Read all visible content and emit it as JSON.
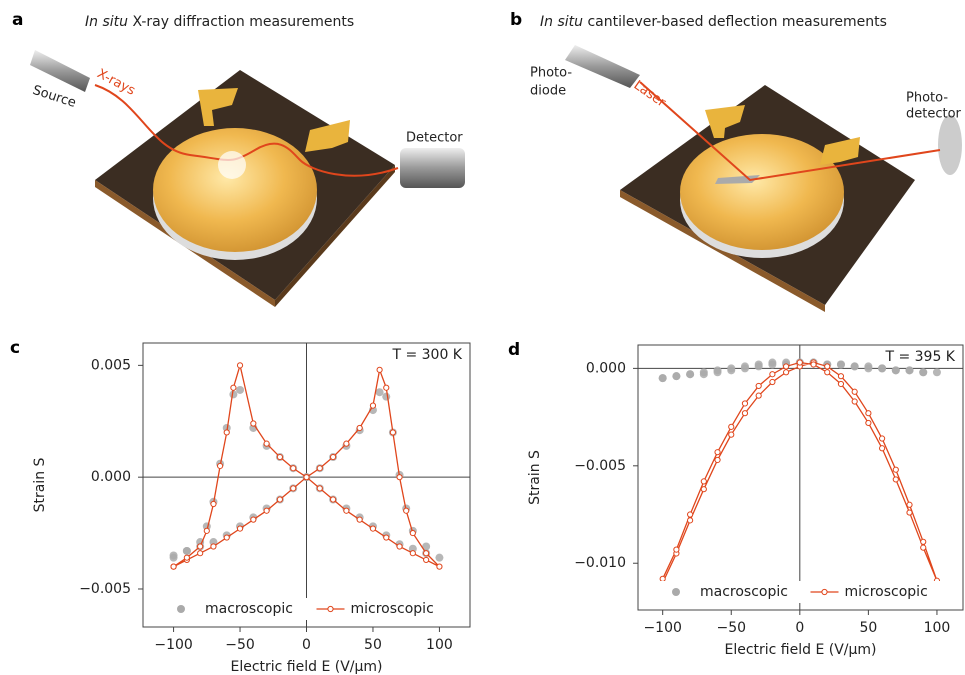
{
  "illustrations": [
    {
      "letter": "a",
      "title_em": "In situ",
      "title": " X-ray diffraction measurements",
      "labels": [
        "Source",
        "X-rays",
        "Detector"
      ]
    },
    {
      "letter": "b",
      "title_em": "In situ",
      "title": " cantilever-based deflection measurements",
      "labels": [
        "Photo-",
        "diode",
        "Laser",
        "Photo-",
        "detector"
      ]
    }
  ],
  "chart_data": [
    {
      "type": "line",
      "panel": "c",
      "annotation": "T = 300 K",
      "xlabel": "Electric field E (V/μm)",
      "ylabel": "Strain S",
      "xlim": [
        -123,
        123
      ],
      "ylim": [
        -0.0067,
        0.006
      ],
      "xticks": [
        {
          "value": -100,
          "label": "−100"
        },
        {
          "value": -50,
          "label": "−50"
        },
        0,
        50,
        100
      ],
      "yticks": [
        {
          "value": -0.005,
          "label": "−0.005"
        },
        {
          "value": 0,
          "label": "0.000"
        },
        {
          "value": 0.005,
          "label": "0.005"
        }
      ],
      "legend": "lower center",
      "x": [
        -100,
        -90,
        -80,
        -70,
        -60,
        -50,
        -40,
        -30,
        -20,
        -10,
        0,
        10,
        20,
        30,
        40,
        50,
        55,
        60,
        65,
        70,
        75,
        80,
        90,
        100,
        90,
        80,
        70,
        60,
        50,
        40,
        30,
        20,
        10,
        0,
        -10,
        -20,
        -30,
        -40,
        -50,
        -55,
        -60,
        -65,
        -70,
        -75,
        -80,
        -90,
        -100
      ],
      "series": [
        {
          "name": "macroscopic",
          "color": "#aaaaaa",
          "marker": "dot",
          "values": [
            -0.0035,
            -0.0033,
            -0.0031,
            -0.0029,
            -0.0026,
            -0.0022,
            -0.0018,
            -0.0014,
            -0.001,
            -0.0005,
            0.0,
            0.0004,
            0.0009,
            0.0014,
            0.0021,
            0.003,
            0.0038,
            0.0036,
            0.002,
            0.0001,
            -0.0014,
            -0.0024,
            -0.0031,
            -0.0036,
            -0.0034,
            -0.0032,
            -0.003,
            -0.0026,
            -0.0022,
            -0.0018,
            -0.0014,
            -0.001,
            -0.0005,
            0.0,
            0.0004,
            0.0009,
            0.0014,
            0.0022,
            0.0039,
            0.0037,
            0.0022,
            0.0006,
            -0.0011,
            -0.0022,
            -0.0029,
            -0.0033,
            -0.0036
          ]
        },
        {
          "name": "microscopic",
          "color": "#e0461c",
          "marker": "line",
          "values": [
            -0.004,
            -0.0037,
            -0.0034,
            -0.0031,
            -0.0027,
            -0.0023,
            -0.0019,
            -0.0015,
            -0.001,
            -0.0005,
            0.0,
            0.0004,
            0.0009,
            0.0015,
            0.0022,
            0.0032,
            0.0048,
            0.004,
            0.002,
            0.0,
            -0.0015,
            -0.0025,
            -0.0034,
            -0.004,
            -0.0037,
            -0.0034,
            -0.0031,
            -0.0027,
            -0.0023,
            -0.0019,
            -0.0015,
            -0.001,
            -0.0005,
            0.0,
            0.0004,
            0.0009,
            0.0015,
            0.0024,
            0.005,
            0.004,
            0.002,
            0.0005,
            -0.0012,
            -0.0024,
            -0.0031,
            -0.0036,
            -0.004
          ]
        }
      ]
    },
    {
      "type": "line",
      "panel": "d",
      "annotation": "T = 395 K",
      "xlabel": "Electric field E (V/μm)",
      "ylabel": "Strain S",
      "xlim": [
        -118,
        119
      ],
      "ylim": [
        -0.0124,
        0.0012
      ],
      "xticks": [
        {
          "value": -100,
          "label": "−100"
        },
        {
          "value": -50,
          "label": "−50"
        },
        0,
        50,
        100
      ],
      "yticks": [
        {
          "value": -0.01,
          "label": "−0.010"
        },
        {
          "value": -0.005,
          "label": "−0.005"
        },
        {
          "value": 0,
          "label": "0.000"
        }
      ],
      "legend": "lower center",
      "x": [
        -100,
        -90,
        -80,
        -70,
        -60,
        -50,
        -40,
        -30,
        -20,
        -10,
        0,
        10,
        20,
        30,
        40,
        50,
        60,
        70,
        80,
        90,
        100,
        90,
        80,
        70,
        60,
        50,
        40,
        30,
        20,
        10,
        0,
        -10,
        -20,
        -30,
        -40,
        -50,
        -60,
        -70,
        -80,
        -90,
        -100
      ],
      "series": [
        {
          "name": "macroscopic",
          "color": "#aaaaaa",
          "marker": "dot",
          "values": [
            -0.0005,
            -0.0004,
            -0.0003,
            -0.0002,
            -0.0001,
            0.0,
            0.0001,
            0.0002,
            0.0003,
            0.0003,
            0.0003,
            0.0003,
            0.0002,
            0.0002,
            0.0001,
            0.0,
            0.0,
            -0.0001,
            -0.0001,
            -0.0002,
            -0.0002,
            -0.0002,
            -0.0001,
            -0.0001,
            0.0,
            0.0001,
            0.0001,
            0.0002,
            0.0002,
            0.0003,
            0.0003,
            0.0002,
            0.0002,
            0.0001,
            0.0,
            -0.0001,
            -0.0002,
            -0.0003,
            -0.0003,
            -0.0004,
            -0.0005
          ]
        },
        {
          "name": "microscopic",
          "color": "#e0461c",
          "marker": "line",
          "values": [
            -0.011,
            -0.0095,
            -0.0078,
            -0.0062,
            -0.0047,
            -0.0034,
            -0.0023,
            -0.0014,
            -0.0007,
            -0.0002,
            0.0001,
            0.0003,
            0.0001,
            -0.0004,
            -0.0012,
            -0.0023,
            -0.0036,
            -0.0052,
            -0.007,
            -0.0089,
            -0.0109,
            -0.0092,
            -0.0074,
            -0.0057,
            -0.0041,
            -0.0028,
            -0.0017,
            -0.0008,
            -0.0002,
            0.0002,
            0.0003,
            0.0001,
            -0.0003,
            -0.0009,
            -0.0018,
            -0.003,
            -0.0043,
            -0.0058,
            -0.0075,
            -0.0093,
            -0.0108
          ]
        }
      ]
    }
  ]
}
